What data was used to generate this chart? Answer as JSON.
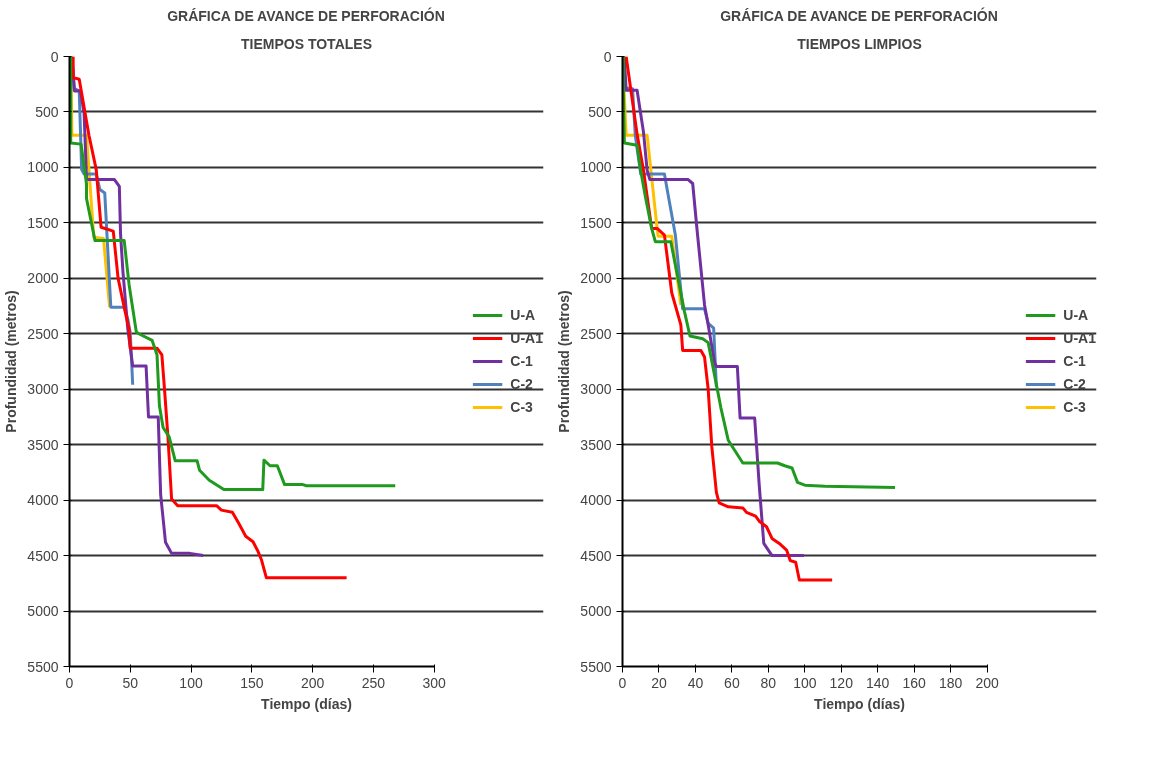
{
  "chart_data": [
    {
      "type": "line",
      "title": "GRÁFICA DE AVANCE DE PERFORACIÓN",
      "subtitle": "TIEMPOS TOTALES",
      "xlabel": "Tiempo (días)",
      "ylabel": "Profundidad (metros)",
      "xlim": [
        0,
        300
      ],
      "xticks": [
        0,
        50,
        100,
        150,
        200,
        250,
        300
      ],
      "ylim": [
        5500,
        0
      ],
      "yticks": [
        0,
        500,
        1000,
        1500,
        2000,
        2500,
        3000,
        3500,
        4000,
        4500,
        5000,
        5500
      ],
      "grid": "y",
      "legend": "right",
      "line_style": "solid",
      "marker": "none",
      "series": [
        {
          "name": "U-A",
          "color": "#1f9a1f",
          "x": [
            1,
            1,
            9.5,
            14,
            14,
            21,
            45,
            49,
            55,
            57,
            68,
            72,
            74,
            77,
            82,
            87,
            105,
            107,
            115,
            127,
            159,
            160,
            165,
            171,
            177,
            192,
            195,
            268
          ],
          "values": [
            0,
            780,
            790,
            1150,
            1280,
            1660,
            1660,
            2055,
            2485,
            2500,
            2560,
            2690,
            3150,
            3345,
            3430,
            3645,
            3645,
            3730,
            3820,
            3905,
            3905,
            3640,
            3690,
            3690,
            3860,
            3860,
            3870,
            3870
          ]
        },
        {
          "name": "U-A1",
          "color": "#ff0000",
          "x": [
            3,
            3,
            8,
            16,
            22,
            26,
            36,
            40,
            45,
            49,
            50,
            72,
            76,
            78,
            81,
            84,
            89,
            121,
            125,
            134,
            139,
            145,
            151,
            155,
            158,
            162,
            228
          ],
          "values": [
            0,
            190,
            205,
            710,
            1020,
            1540,
            1575,
            2000,
            2260,
            2460,
            2630,
            2630,
            2690,
            2975,
            3430,
            3990,
            4050,
            4050,
            4090,
            4110,
            4205,
            4325,
            4375,
            4460,
            4540,
            4700,
            4700
          ]
        },
        {
          "name": "C-1",
          "color": "#7030a0",
          "x": [
            2,
            4,
            9,
            12,
            13,
            14,
            37,
            41,
            42,
            44,
            48,
            52,
            63,
            65,
            73,
            75,
            79,
            84,
            99,
            110
          ],
          "values": [
            0,
            310,
            310,
            510,
            800,
            1110,
            1110,
            1170,
            1600,
            1945,
            2460,
            2790,
            2790,
            3250,
            3250,
            3950,
            4380,
            4480,
            4480,
            4500
          ]
        },
        {
          "name": "C-2",
          "color": "#4f81bd",
          "x": [
            2,
            4,
            8,
            10,
            12,
            22,
            25,
            29,
            34,
            45,
            48,
            50,
            52
          ],
          "values": [
            0,
            290,
            310,
            1020,
            1060,
            1060,
            1200,
            1230,
            2260,
            2260,
            2370,
            2490,
            2960
          ]
        },
        {
          "name": "C-3",
          "color": "#ffc000",
          "x": [
            1,
            2,
            14,
            20,
            28,
            33
          ],
          "values": [
            0,
            710,
            710,
            1630,
            1640,
            2260
          ]
        }
      ]
    },
    {
      "type": "line",
      "title": "GRÁFICA DE AVANCE DE PERFORACIÓN",
      "subtitle": "TIEMPOS LIMPIOS",
      "xlabel": "Tiempo (días)",
      "ylabel": "Profundidad (metros)",
      "xlim": [
        0,
        200
      ],
      "xticks": [
        0,
        20,
        40,
        60,
        80,
        100,
        120,
        140,
        160,
        180,
        200
      ],
      "ylim": [
        5500,
        0
      ],
      "yticks": [
        0,
        500,
        1000,
        1500,
        2000,
        2500,
        3000,
        3500,
        4000,
        4500,
        5000,
        5500
      ],
      "grid": "y",
      "legend": "right",
      "line_style": "solid",
      "marker": "none",
      "series": [
        {
          "name": "U-A",
          "color": "#1f9a1f",
          "x": [
            0.5,
            0.5,
            1,
            8,
            10,
            12.5,
            16,
            18,
            26.5,
            34,
            37,
            44,
            47,
            52,
            54,
            58,
            66,
            85,
            89,
            93,
            96,
            100,
            111,
            149.5
          ],
          "values": [
            0,
            330,
            780,
            800,
            1030,
            1260,
            1550,
            1670,
            1670,
            2300,
            2520,
            2545,
            2580,
            3000,
            3170,
            3460,
            3665,
            3665,
            3690,
            3710,
            3840,
            3865,
            3875,
            3885
          ]
        },
        {
          "name": "U-A1",
          "color": "#ff0000",
          "x": [
            2,
            8,
            11.5,
            13.5,
            16,
            19,
            23,
            27,
            32,
            33,
            43,
            45,
            47,
            49,
            51.5,
            53,
            58,
            66,
            68,
            73,
            75,
            79,
            82,
            86,
            90,
            92,
            95,
            97,
            115
          ],
          "values": [
            0,
            700,
            1025,
            1260,
            1550,
            1550,
            1610,
            2130,
            2420,
            2650,
            2650,
            2710,
            3000,
            3520,
            3930,
            4025,
            4060,
            4070,
            4110,
            4145,
            4190,
            4240,
            4345,
            4390,
            4450,
            4545,
            4560,
            4720,
            4720
          ]
        },
        {
          "name": "C-1",
          "color": "#7030a0",
          "x": [
            1,
            2,
            8,
            11.5,
            13.5,
            15,
            36,
            38.5,
            41,
            45,
            47,
            50.5,
            51.5,
            63,
            64.5,
            72.5,
            75,
            77.5,
            82,
            99.5
          ],
          "values": [
            0,
            305,
            305,
            680,
            1025,
            1110,
            1110,
            1145,
            1580,
            2240,
            2420,
            2760,
            2795,
            2795,
            3260,
            3260,
            3865,
            4390,
            4500,
            4500
          ]
        },
        {
          "name": "C-2",
          "color": "#4f81bd",
          "x": [
            0.5,
            0.5,
            5.5,
            7,
            10,
            23,
            24.5,
            29,
            33,
            45,
            47,
            50,
            51.5
          ],
          "values": [
            0,
            280,
            290,
            710,
            1060,
            1060,
            1200,
            1610,
            2275,
            2275,
            2405,
            2450,
            2980
          ]
        },
        {
          "name": "C-3",
          "color": "#ffc000",
          "x": [
            0,
            2,
            13.5,
            19,
            19.5,
            27,
            32
          ],
          "values": [
            0,
            710,
            710,
            1550,
            1620,
            1620,
            2240
          ]
        }
      ]
    }
  ]
}
